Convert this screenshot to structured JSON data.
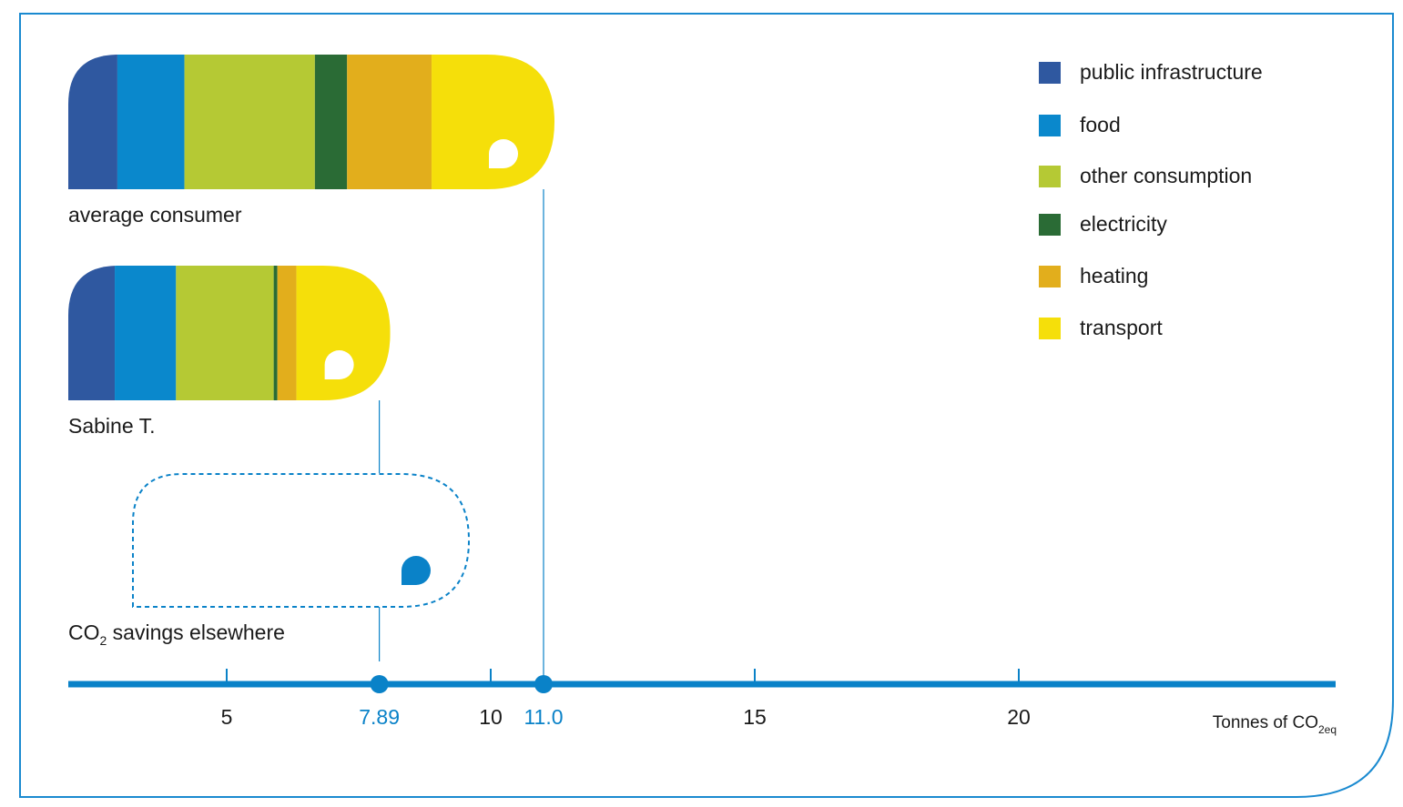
{
  "chart_data": {
    "type": "bar",
    "orientation": "horizontal",
    "categories": [
      "average consumer",
      "Sabine T."
    ],
    "series": [
      {
        "name": "public infrastructure",
        "color": "#2f58a0",
        "values": [
          0.93,
          0.88
        ]
      },
      {
        "name": "food",
        "color": "#0a88cc",
        "values": [
          1.27,
          1.16
        ]
      },
      {
        "name": "other consumption",
        "color": "#b5c934",
        "values": [
          2.47,
          1.85
        ]
      },
      {
        "name": "electricity",
        "color": "#2a6b35",
        "values": [
          0.61,
          0.07
        ]
      },
      {
        "name": "heating",
        "color": "#e2ae1c",
        "values": [
          1.6,
          0.36
        ]
      },
      {
        "name": "transport",
        "color": "#f5df0a",
        "values": [
          2.12,
          1.57
        ]
      }
    ],
    "savings_label": {
      "main": "CO",
      "sub": "2",
      "rest": " savings elsewhere"
    },
    "xlim": [
      2,
      26
    ],
    "xticks": [
      5,
      10,
      15,
      20
    ],
    "markers": [
      7.89,
      {
        "value": 11,
        "label": "11.0"
      }
    ],
    "x_label": {
      "main": "Tonnes of CO",
      "sub": "2eq"
    },
    "legend": "top-right"
  }
}
